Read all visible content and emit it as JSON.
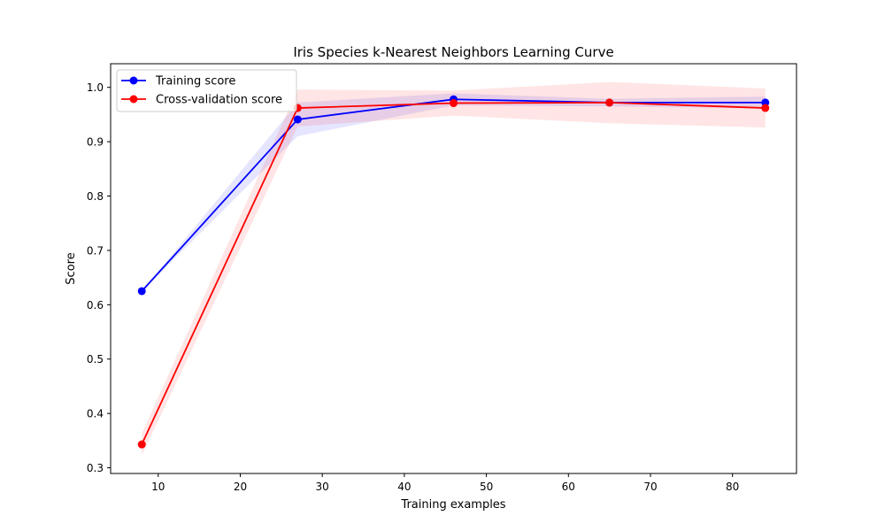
{
  "chart_data": {
    "type": "line",
    "title": "Iris Species k-Nearest Neighbors Learning Curve",
    "xlabel": "Training examples",
    "ylabel": "Score",
    "xlim": [
      4.2,
      87.8
    ],
    "ylim": [
      0.2895,
      1.0435
    ],
    "xticks": [
      10,
      20,
      30,
      40,
      50,
      60,
      70,
      80
    ],
    "yticks": [
      0.3,
      0.4,
      0.5,
      0.6,
      0.7,
      0.8,
      0.9,
      1.0
    ],
    "xtick_labels": [
      "10",
      "20",
      "30",
      "40",
      "50",
      "60",
      "70",
      "80"
    ],
    "ytick_labels": [
      "0.3",
      "0.4",
      "0.5",
      "0.6",
      "0.7",
      "0.8",
      "0.9",
      "1.0"
    ],
    "x": [
      8,
      27,
      46,
      65,
      84
    ],
    "grid": false,
    "legend_position": "top-left",
    "series": [
      {
        "name": "Training score",
        "color": "#0000ff",
        "band_color": "#0000ff",
        "values": [
          0.625,
          0.941,
          0.978,
          0.972,
          0.972
        ],
        "lower": [
          0.625,
          0.91,
          0.967,
          0.965,
          0.961
        ],
        "upper": [
          0.625,
          0.972,
          0.989,
          0.979,
          0.983
        ]
      },
      {
        "name": "Cross-validation score",
        "color": "#ff0000",
        "band_color": "#ff0000",
        "values": [
          0.343,
          0.962,
          0.971,
          0.972,
          0.962
        ],
        "lower": [
          0.323,
          0.928,
          0.948,
          0.934,
          0.926
        ],
        "upper": [
          0.363,
          0.996,
          0.994,
          1.01,
          0.998
        ]
      }
    ]
  }
}
